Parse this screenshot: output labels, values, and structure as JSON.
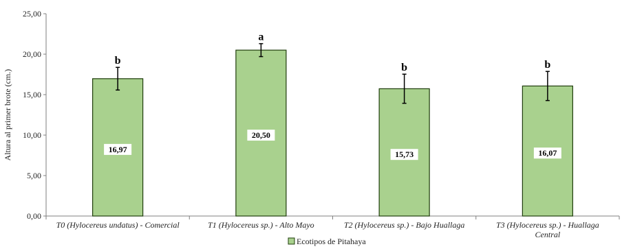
{
  "chart_data": {
    "type": "bar",
    "ylabel": "Altura al primer brote (cm.)",
    "ylim": [
      0,
      25
    ],
    "y_ticks": [
      "0,00",
      "5,00",
      "10,00",
      "15,00",
      "20,00",
      "25,00"
    ],
    "categories": [
      [
        "T0 (Hylocereus undatus) - Comercial"
      ],
      [
        "T1 (Hylocereus sp.) - Alto Mayo"
      ],
      [
        "T2 (Hylocereus sp.) - Bajo Huallaga"
      ],
      [
        "T3 (Hylocereus sp.) - Huallaga",
        "Central"
      ]
    ],
    "series": [
      {
        "name": "Ecotipos de Pitahaya",
        "values": [
          16.97,
          20.5,
          15.73,
          16.07
        ],
        "value_labels": [
          "16,97",
          "20,50",
          "15,73",
          "16,07"
        ],
        "error": [
          1.4,
          0.8,
          1.8,
          1.8
        ],
        "significance": [
          "b",
          "a",
          "b",
          "b"
        ]
      }
    ],
    "colors": {
      "bar": "#a9d18e",
      "bar_edge": "#1f3d0c",
      "axis": "#7f7f7f"
    },
    "grid": false,
    "legend_position": "bottom-center"
  }
}
